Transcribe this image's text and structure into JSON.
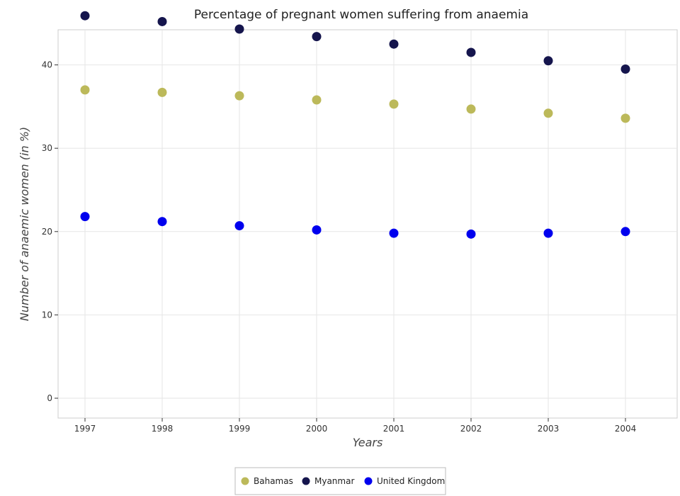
{
  "chart_data": {
    "type": "scatter",
    "title": "Percentage of pregnant women suffering from anaemia",
    "xlabel": "Years",
    "ylabel": "Number of anaemic women (in %)",
    "categories": [
      "1997",
      "1998",
      "1999",
      "2000",
      "2001",
      "2002",
      "2003",
      "2004"
    ],
    "ylim": [
      0,
      47.7
    ],
    "yticks": [
      0,
      10,
      20,
      30,
      40
    ],
    "grid": true,
    "legend_position": "bottom",
    "series": [
      {
        "name": "Bahamas",
        "color": "#bcb95a",
        "values": [
          37.0,
          36.7,
          36.3,
          35.8,
          35.3,
          34.7,
          34.2,
          33.6
        ]
      },
      {
        "name": "Myanmar",
        "color": "#15154d",
        "values": [
          45.9,
          45.2,
          44.3,
          43.4,
          42.5,
          41.5,
          40.5,
          39.5
        ]
      },
      {
        "name": "United Kingdom",
        "color": "#0000ee",
        "values": [
          21.8,
          21.2,
          20.7,
          20.2,
          19.8,
          19.7,
          19.8,
          20.0
        ]
      }
    ]
  }
}
